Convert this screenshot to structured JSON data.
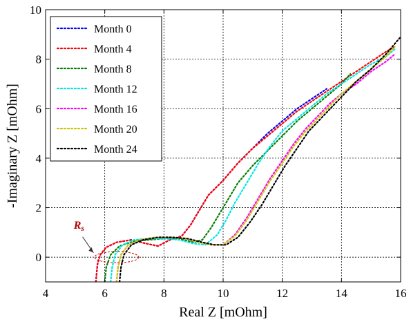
{
  "chart_data": {
    "type": "line",
    "title": "",
    "xlabel": "Real Z [mOhm]",
    "ylabel": "-Imaginary Z [mOhm]",
    "xlim": [
      4,
      16
    ],
    "ylim": [
      -1,
      10
    ],
    "xticks": [
      4,
      6,
      8,
      10,
      12,
      14,
      16
    ],
    "yticks": [
      0,
      2,
      4,
      6,
      8,
      10
    ],
    "grid": true,
    "legend_position": "top-left",
    "annotation": {
      "label": "R",
      "subscript": "s",
      "color": "#b00000"
    },
    "series": [
      {
        "name": "Month 0",
        "color": "#0000ff",
        "x": [
          5.7,
          5.75,
          5.85,
          6.05,
          6.4,
          6.9,
          7.4,
          7.8,
          8.2,
          8.6,
          8.9,
          9.2,
          9.5,
          10.0,
          10.5,
          11.0,
          11.5,
          12.0,
          12.5,
          13.0,
          13.5
        ],
        "y": [
          -1.0,
          -0.3,
          0.1,
          0.4,
          0.6,
          0.7,
          0.55,
          0.45,
          0.7,
          0.85,
          1.3,
          1.9,
          2.5,
          3.1,
          3.8,
          4.4,
          5.0,
          5.5,
          6.0,
          6.4,
          6.8
        ]
      },
      {
        "name": "Month 4",
        "color": "#ff0000",
        "x": [
          5.7,
          5.75,
          5.85,
          6.05,
          6.4,
          6.9,
          7.4,
          7.8,
          8.2,
          8.6,
          8.9,
          9.2,
          9.5,
          10.0,
          10.5,
          11.0,
          11.5,
          12.0,
          12.5,
          13.0,
          13.5,
          14.0,
          14.5,
          15.0,
          15.5,
          15.8
        ],
        "y": [
          -1.0,
          -0.3,
          0.1,
          0.4,
          0.6,
          0.7,
          0.55,
          0.45,
          0.7,
          0.85,
          1.3,
          1.9,
          2.5,
          3.1,
          3.8,
          4.4,
          4.9,
          5.4,
          5.9,
          6.3,
          6.7,
          7.1,
          7.5,
          7.9,
          8.3,
          8.5
        ]
      },
      {
        "name": "Month 8",
        "color": "#008000",
        "x": [
          6.0,
          6.05,
          6.2,
          6.5,
          7.0,
          7.5,
          8.0,
          8.5,
          9.0,
          9.3,
          9.6,
          9.9,
          10.2,
          10.5,
          11.0,
          11.5,
          12.0,
          12.5,
          13.0,
          13.5,
          14.0,
          14.3
        ],
        "y": [
          -1.0,
          -0.4,
          0.1,
          0.45,
          0.65,
          0.7,
          0.75,
          0.75,
          0.6,
          0.7,
          1.2,
          1.8,
          2.4,
          3.0,
          3.7,
          4.3,
          4.9,
          5.5,
          6.0,
          6.5,
          7.0,
          7.4
        ]
      },
      {
        "name": "Month 12",
        "color": "#00e5e5",
        "x": [
          6.2,
          6.25,
          6.35,
          6.6,
          7.0,
          7.5,
          8.0,
          8.5,
          9.0,
          9.4,
          9.8,
          10.1,
          10.4,
          10.8,
          11.2,
          11.6,
          12.0,
          12.5,
          13.0,
          13.5,
          14.0,
          14.5,
          15.0,
          15.5,
          15.8
        ],
        "y": [
          -1.0,
          -0.4,
          0.1,
          0.5,
          0.7,
          0.75,
          0.75,
          0.7,
          0.55,
          0.5,
          0.9,
          1.5,
          2.2,
          3.0,
          3.8,
          4.5,
          5.1,
          5.6,
          6.1,
          6.6,
          7.0,
          7.4,
          7.8,
          8.1,
          8.4
        ]
      },
      {
        "name": "Month 16",
        "color": "#ff00ff",
        "x": [
          6.4,
          6.45,
          6.55,
          6.8,
          7.2,
          7.7,
          8.2,
          8.7,
          9.2,
          9.6,
          10.0,
          10.4,
          10.8,
          11.2,
          11.6,
          12.0,
          12.4,
          12.8,
          13.2,
          13.6,
          14.0,
          14.5,
          15.0,
          15.5,
          15.8
        ],
        "y": [
          -1.0,
          -0.4,
          0.1,
          0.5,
          0.7,
          0.8,
          0.8,
          0.75,
          0.6,
          0.5,
          0.5,
          0.9,
          1.6,
          2.4,
          3.2,
          3.9,
          4.6,
          5.2,
          5.7,
          6.2,
          6.6,
          7.0,
          7.5,
          7.9,
          8.2
        ]
      },
      {
        "name": "Month 20",
        "color": "#c8c800",
        "x": [
          6.4,
          6.45,
          6.55,
          6.8,
          7.2,
          7.7,
          8.2,
          8.7,
          9.2,
          9.6,
          10.0,
          10.4,
          10.8,
          11.2,
          11.6,
          12.0,
          12.4,
          12.8,
          13.2,
          13.6,
          14.0,
          14.5,
          15.0,
          15.5,
          15.8
        ],
        "y": [
          -1.0,
          -0.4,
          0.1,
          0.5,
          0.7,
          0.8,
          0.8,
          0.75,
          0.6,
          0.5,
          0.5,
          0.85,
          1.5,
          2.3,
          3.1,
          3.8,
          4.5,
          5.1,
          5.6,
          6.1,
          6.6,
          7.1,
          7.6,
          8.1,
          8.5
        ]
      },
      {
        "name": "Month 24",
        "color": "#000000",
        "x": [
          6.5,
          6.55,
          6.65,
          6.9,
          7.3,
          7.8,
          8.3,
          8.8,
          9.3,
          9.7,
          10.1,
          10.5,
          10.9,
          11.3,
          11.7,
          12.1,
          12.5,
          12.9,
          13.3,
          13.7,
          14.1,
          14.5,
          15.0,
          15.5,
          16.0
        ],
        "y": [
          -1.0,
          -0.4,
          0.1,
          0.5,
          0.7,
          0.8,
          0.8,
          0.75,
          0.6,
          0.5,
          0.5,
          0.8,
          1.4,
          2.1,
          2.9,
          3.7,
          4.4,
          5.1,
          5.6,
          6.1,
          6.6,
          7.1,
          7.6,
          8.2,
          8.9
        ]
      }
    ]
  }
}
